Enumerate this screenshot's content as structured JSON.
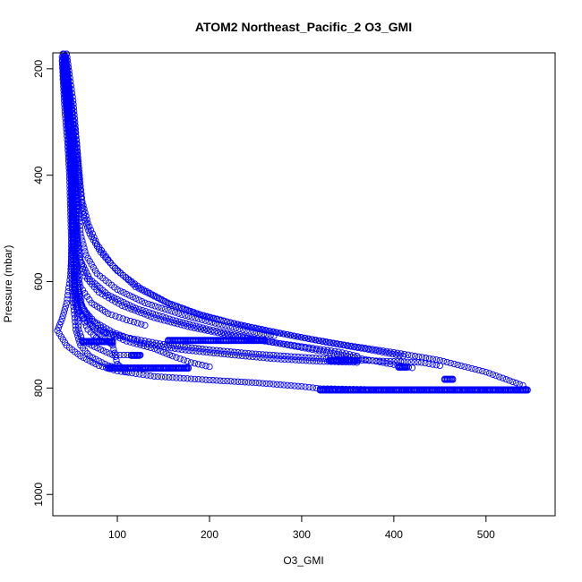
{
  "chart_data": {
    "type": "scatter",
    "title": "ATOM2 Northeast_Pacific_2 O3_GMI",
    "xlabel": "O3_GMI",
    "ylabel": "Pressure (mbar)",
    "xlim": [
      30,
      575
    ],
    "ylim": [
      1040,
      170
    ],
    "y_reversed": true,
    "xticks": [
      100,
      200,
      300,
      400,
      500
    ],
    "yticks": [
      200,
      400,
      600,
      800,
      1000
    ],
    "grid": false,
    "legend": "none",
    "marker": "open-circle",
    "point_color": "#0000ff",
    "profiles": [
      {
        "points": [
          [
            42,
            172
          ],
          [
            43,
            190
          ],
          [
            44,
            210
          ],
          [
            45,
            240
          ],
          [
            47,
            280
          ],
          [
            49,
            320
          ],
          [
            50,
            360
          ],
          [
            51,
            400
          ],
          [
            51,
            440
          ],
          [
            52,
            480
          ],
          [
            52,
            520
          ],
          [
            52,
            560
          ],
          [
            53,
            600
          ],
          [
            54,
            640
          ],
          [
            58,
            660
          ],
          [
            70,
            680
          ],
          [
            85,
            695
          ],
          [
            110,
            705
          ],
          [
            150,
            718
          ],
          [
            200,
            728
          ],
          [
            250,
            736
          ],
          [
            300,
            742
          ],
          [
            350,
            747
          ],
          [
            400,
            750
          ],
          [
            430,
            752
          ],
          [
            450,
            758
          ]
        ]
      },
      {
        "points": [
          [
            43,
            175
          ],
          [
            45,
            200
          ],
          [
            48,
            240
          ],
          [
            52,
            290
          ],
          [
            56,
            340
          ],
          [
            58,
            380
          ],
          [
            60,
            420
          ],
          [
            62,
            450
          ],
          [
            68,
            490
          ],
          [
            78,
            530
          ],
          [
            95,
            570
          ],
          [
            120,
            610
          ],
          [
            160,
            645
          ],
          [
            200,
            668
          ],
          [
            250,
            688
          ],
          [
            300,
            705
          ],
          [
            350,
            720
          ],
          [
            400,
            733
          ],
          [
            450,
            748
          ],
          [
            500,
            770
          ],
          [
            540,
            795
          ],
          [
            543,
            802
          ]
        ]
      },
      {
        "points": [
          [
            41,
            180
          ],
          [
            43,
            210
          ],
          [
            46,
            260
          ],
          [
            50,
            310
          ],
          [
            53,
            360
          ],
          [
            55,
            420
          ],
          [
            56,
            480
          ],
          [
            57,
            520
          ],
          [
            60,
            560
          ],
          [
            70,
            595
          ],
          [
            90,
            625
          ],
          [
            120,
            650
          ],
          [
            160,
            672
          ],
          [
            200,
            690
          ],
          [
            250,
            708
          ],
          [
            300,
            724
          ],
          [
            350,
            740
          ],
          [
            400,
            756
          ],
          [
            420,
            762
          ]
        ]
      },
      {
        "points": [
          [
            44,
            178
          ],
          [
            47,
            220
          ],
          [
            50,
            270
          ],
          [
            53,
            330
          ],
          [
            55,
            390
          ],
          [
            56,
            440
          ],
          [
            56,
            500
          ],
          [
            58,
            550
          ],
          [
            65,
            590
          ],
          [
            80,
            620
          ],
          [
            105,
            645
          ],
          [
            140,
            668
          ],
          [
            180,
            686
          ],
          [
            220,
            700
          ],
          [
            260,
            712
          ],
          [
            300,
            722
          ],
          [
            340,
            732
          ],
          [
            360,
            740
          ]
        ]
      },
      {
        "points": [
          [
            40,
            185
          ],
          [
            42,
            230
          ],
          [
            45,
            280
          ],
          [
            48,
            330
          ],
          [
            50,
            380
          ],
          [
            51,
            430
          ],
          [
            52,
            480
          ],
          [
            52,
            530
          ],
          [
            53,
            580
          ],
          [
            55,
            620
          ],
          [
            62,
            650
          ],
          [
            75,
            675
          ],
          [
            95,
            695
          ],
          [
            125,
            715
          ],
          [
            170,
            728
          ],
          [
            220,
            737
          ],
          [
            270,
            745
          ],
          [
            320,
            750
          ],
          [
            360,
            752
          ]
        ]
      },
      {
        "points": [
          [
            45,
            172
          ],
          [
            48,
            210
          ],
          [
            52,
            260
          ],
          [
            55,
            320
          ],
          [
            57,
            370
          ],
          [
            58,
            410
          ],
          [
            58,
            460
          ],
          [
            60,
            510
          ],
          [
            66,
            550
          ],
          [
            78,
            585
          ],
          [
            100,
            615
          ],
          [
            130,
            640
          ],
          [
            170,
            662
          ],
          [
            210,
            680
          ],
          [
            240,
            692
          ],
          [
            270,
            702
          ]
        ]
      },
      {
        "points": [
          [
            41,
            190
          ],
          [
            44,
            250
          ],
          [
            47,
            300
          ],
          [
            49,
            350
          ],
          [
            50,
            400
          ],
          [
            50,
            450
          ],
          [
            51,
            500
          ],
          [
            52,
            560
          ],
          [
            54,
            610
          ],
          [
            58,
            650
          ],
          [
            68,
            690
          ],
          [
            80,
            710
          ],
          [
            95,
            715
          ]
        ]
      },
      {
        "points": [
          [
            42,
            200
          ],
          [
            45,
            260
          ],
          [
            48,
            310
          ],
          [
            50,
            360
          ],
          [
            51,
            410
          ],
          [
            52,
            460
          ],
          [
            53,
            520
          ],
          [
            55,
            570
          ],
          [
            60,
            610
          ],
          [
            72,
            640
          ],
          [
            90,
            660
          ],
          [
            110,
            672
          ],
          [
            130,
            682
          ]
        ]
      },
      {
        "points": [
          [
            40,
            178
          ],
          [
            41,
            220
          ],
          [
            43,
            280
          ],
          [
            46,
            340
          ],
          [
            48,
            400
          ],
          [
            49,
            460
          ],
          [
            50,
            520
          ],
          [
            50,
            580
          ],
          [
            52,
            640
          ],
          [
            55,
            690
          ],
          [
            60,
            720
          ],
          [
            70,
            740
          ],
          [
            90,
            758
          ],
          [
            100,
            762
          ],
          [
            130,
            762
          ],
          [
            175,
            762
          ]
        ]
      },
      {
        "points": [
          [
            43,
            176
          ],
          [
            46,
            230
          ],
          [
            49,
            290
          ],
          [
            51,
            350
          ],
          [
            52,
            410
          ],
          [
            52,
            470
          ],
          [
            51,
            530
          ],
          [
            49,
            590
          ],
          [
            45,
            640
          ],
          [
            40,
            670
          ],
          [
            35,
            692
          ],
          [
            45,
            720
          ],
          [
            60,
            740
          ],
          [
            80,
            758
          ],
          [
            100,
            768
          ],
          [
            140,
            778
          ],
          [
            200,
            785
          ],
          [
            250,
            790
          ],
          [
            300,
            797
          ],
          [
            320,
            801
          ],
          [
            380,
            803
          ],
          [
            450,
            803
          ],
          [
            500,
            803
          ],
          [
            540,
            803
          ]
        ]
      },
      {
        "points": [
          [
            44,
            182
          ],
          [
            46,
            240
          ],
          [
            48,
            300
          ],
          [
            50,
            360
          ],
          [
            52,
            420
          ],
          [
            53,
            480
          ],
          [
            54,
            540
          ],
          [
            56,
            600
          ],
          [
            60,
            640
          ],
          [
            70,
            670
          ],
          [
            88,
            695
          ],
          [
            110,
            712
          ],
          [
            140,
            726
          ],
          [
            160,
            740
          ],
          [
            180,
            752
          ],
          [
            200,
            760
          ]
        ]
      },
      {
        "points": [
          [
            42,
            186
          ],
          [
            44,
            240
          ],
          [
            46,
            300
          ],
          [
            48,
            360
          ],
          [
            50,
            420
          ],
          [
            51,
            480
          ],
          [
            52,
            540
          ],
          [
            54,
            600
          ],
          [
            56,
            650
          ],
          [
            58,
            690
          ],
          [
            62,
            710
          ],
          [
            72,
            720
          ],
          [
            85,
            730
          ],
          [
            95,
            738
          ],
          [
            115,
            738
          ],
          [
            125,
            738
          ]
        ]
      },
      {
        "points": [
          [
            41,
            172
          ],
          [
            43,
            200
          ],
          [
            46,
            250
          ],
          [
            50,
            300
          ],
          [
            54,
            350
          ],
          [
            58,
            400
          ],
          [
            61,
            450
          ],
          [
            64,
            480
          ],
          [
            70,
            510
          ],
          [
            82,
            545
          ],
          [
            100,
            580
          ],
          [
            125,
            612
          ],
          [
            155,
            640
          ],
          [
            190,
            662
          ],
          [
            230,
            680
          ],
          [
            280,
            698
          ],
          [
            330,
            715
          ],
          [
            380,
            730
          ],
          [
            410,
            740
          ]
        ]
      },
      {
        "points": [
          [
            45,
            200
          ],
          [
            48,
            260
          ],
          [
            51,
            320
          ],
          [
            53,
            380
          ],
          [
            54,
            440
          ],
          [
            55,
            500
          ],
          [
            56,
            560
          ],
          [
            58,
            610
          ],
          [
            62,
            650
          ],
          [
            75,
            690
          ],
          [
            95,
            720
          ],
          [
            100,
            755
          ],
          [
            105,
            762
          ],
          [
            110,
            770
          ]
        ]
      }
    ],
    "flats": [
      {
        "p": 803,
        "x": [
          320,
          545
        ]
      },
      {
        "p": 762,
        "x": [
          90,
          178
        ]
      },
      {
        "p": 710,
        "x": [
          155,
          260
        ]
      },
      {
        "p": 748,
        "x": [
          330,
          360
        ]
      },
      {
        "p": 760,
        "x": [
          405,
          415
        ]
      },
      {
        "p": 783,
        "x": [
          455,
          465
        ]
      },
      {
        "p": 712,
        "x": [
          62,
          95
        ]
      },
      {
        "p": 738,
        "x": [
          115,
          125
        ]
      }
    ]
  }
}
